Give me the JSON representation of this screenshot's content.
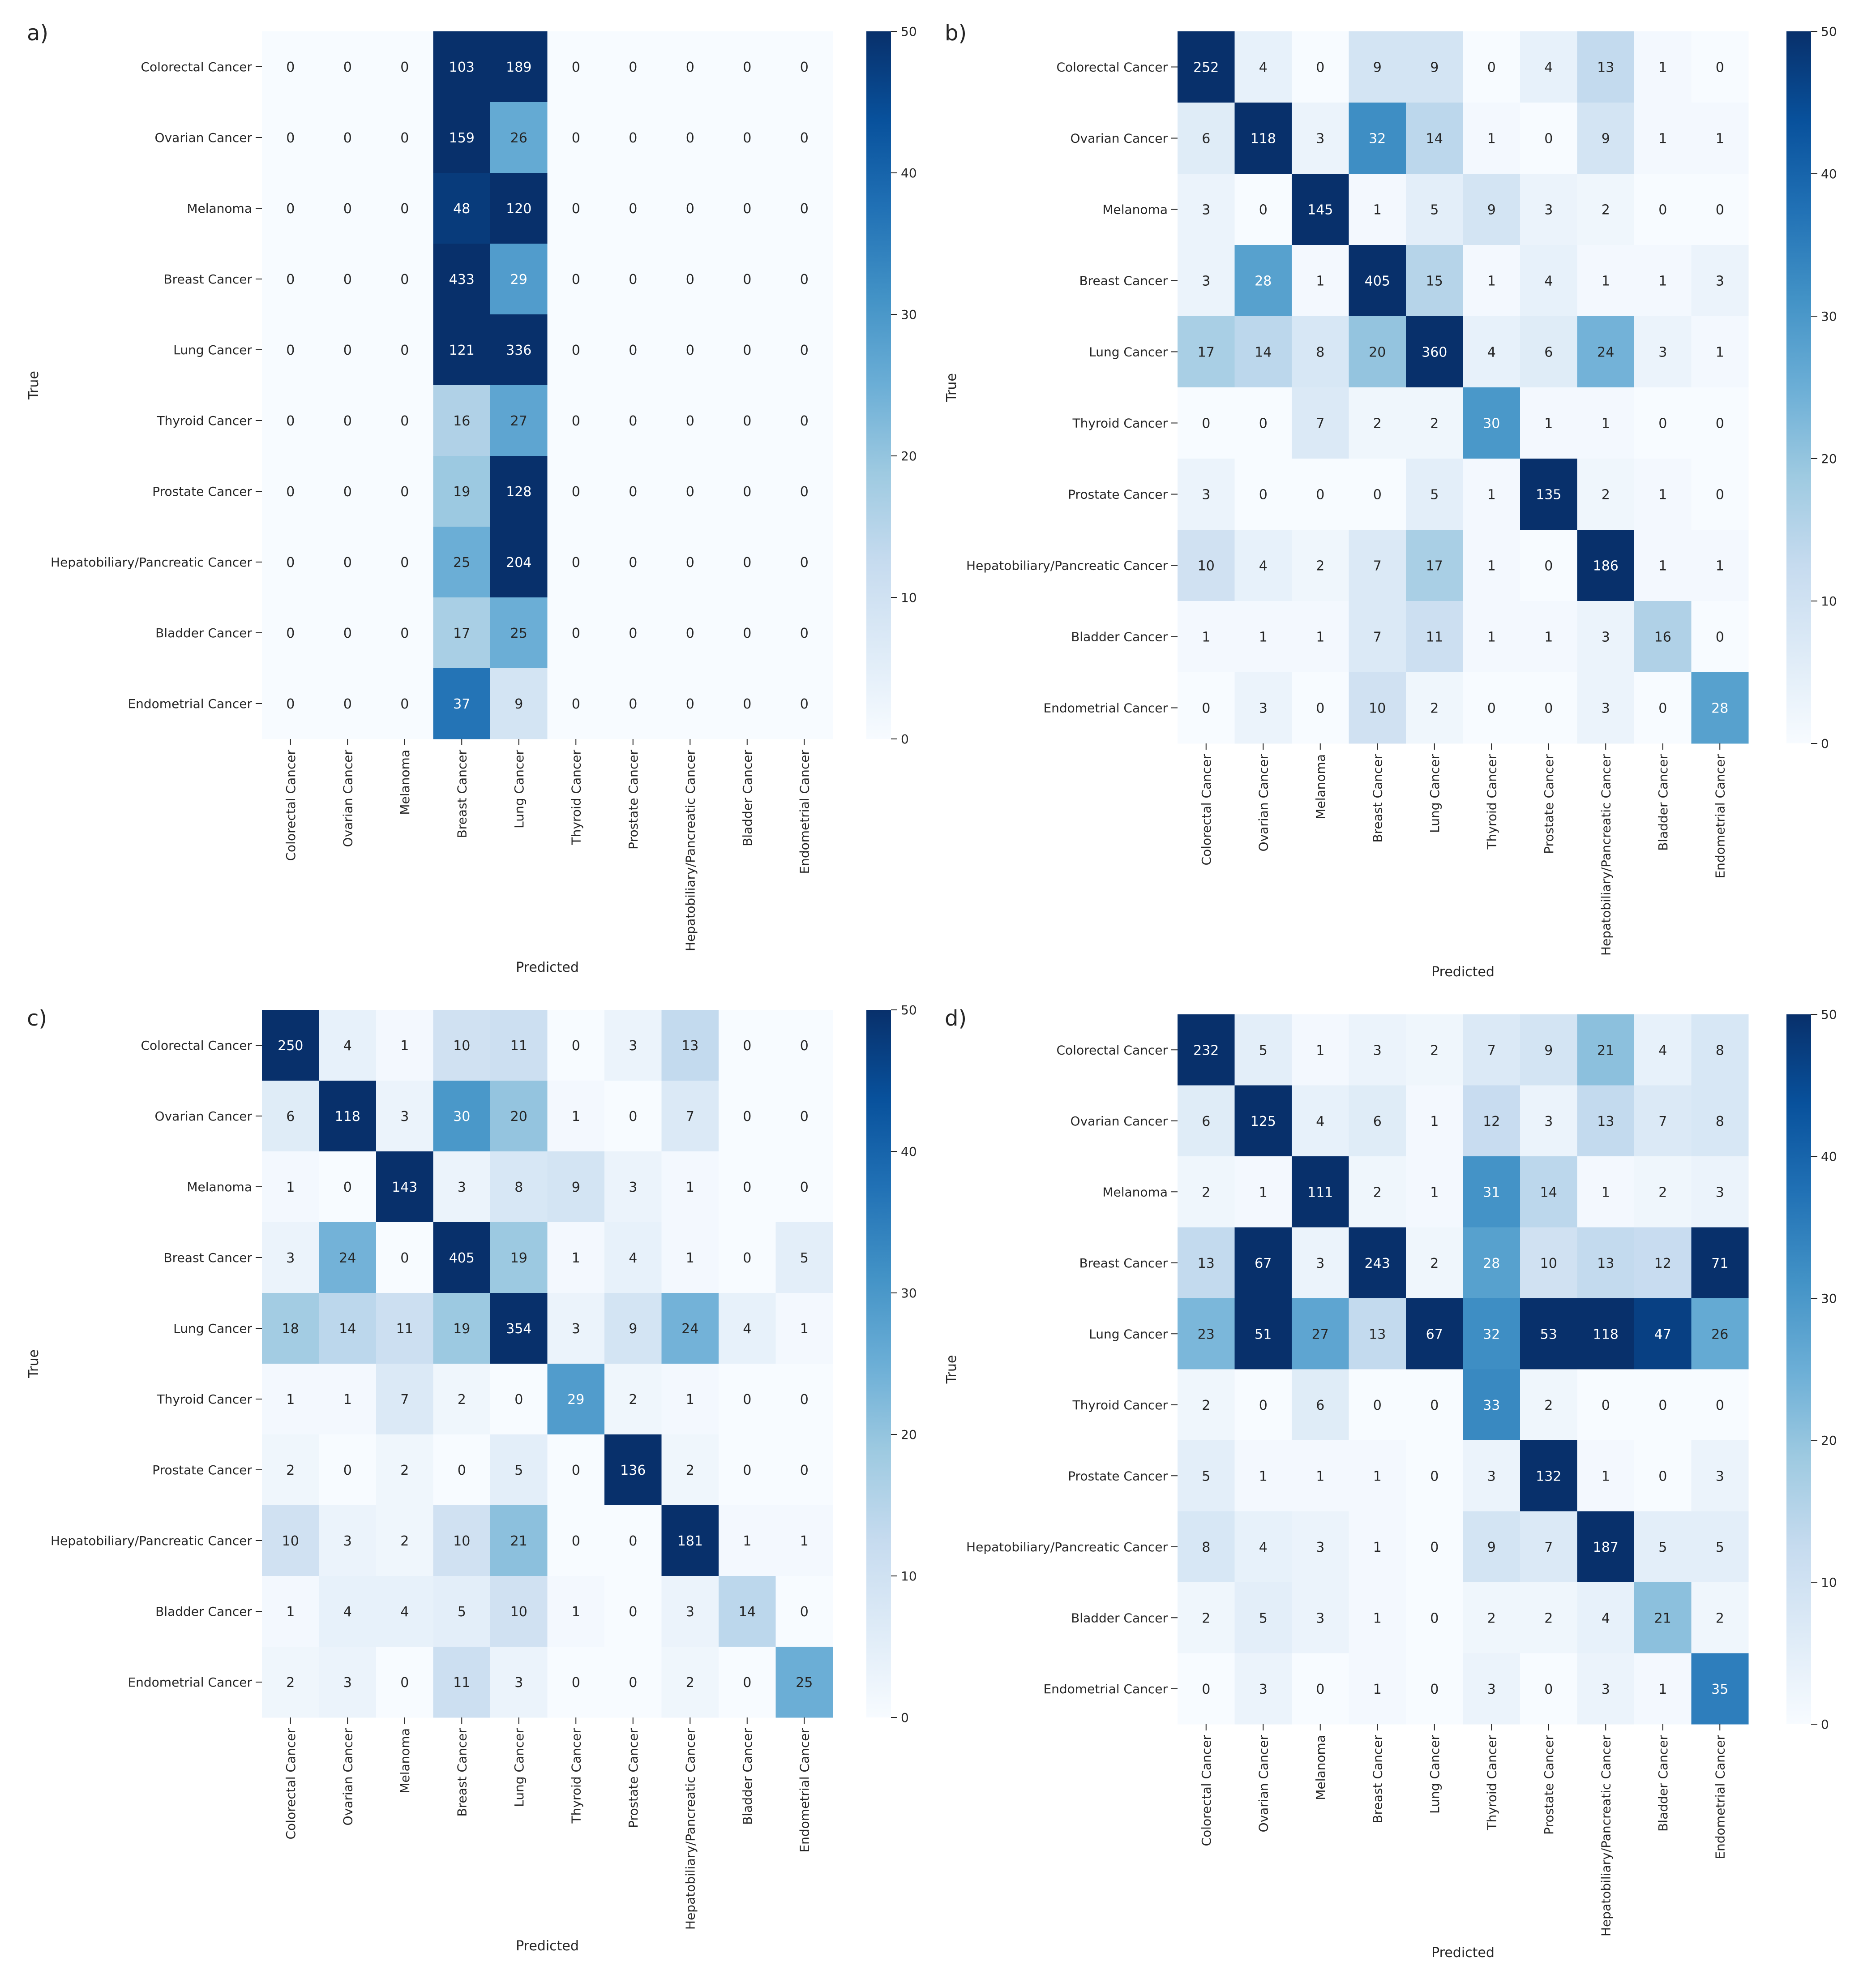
{
  "chart_data": [
    {
      "type": "heatmap",
      "panel_label": "a)",
      "xlabel": "Predicted",
      "ylabel": "True",
      "rows": [
        "Colorectal Cancer",
        "Ovarian Cancer",
        "Melanoma",
        "Breast Cancer",
        "Lung Cancer",
        "Thyroid Cancer",
        "Prostate Cancer",
        "Hepatobiliary/Pancreatic Cancer",
        "Bladder Cancer",
        "Endometrial Cancer"
      ],
      "cols": [
        "Colorectal Cancer",
        "Ovarian Cancer",
        "Melanoma",
        "Breast Cancer",
        "Lung Cancer",
        "Thyroid Cancer",
        "Prostate Cancer",
        "Hepatobiliary/Pancreatic Cancer",
        "Bladder Cancer",
        "Endometrial Cancer"
      ],
      "matrix": [
        [
          0,
          0,
          0,
          103,
          189,
          0,
          0,
          0,
          0,
          0
        ],
        [
          0,
          0,
          0,
          159,
          26,
          0,
          0,
          0,
          0,
          0
        ],
        [
          0,
          0,
          0,
          48,
          120,
          0,
          0,
          0,
          0,
          0
        ],
        [
          0,
          0,
          0,
          433,
          29,
          0,
          0,
          0,
          0,
          0
        ],
        [
          0,
          0,
          0,
          121,
          336,
          0,
          0,
          0,
          0,
          0
        ],
        [
          0,
          0,
          0,
          16,
          27,
          0,
          0,
          0,
          0,
          0
        ],
        [
          0,
          0,
          0,
          19,
          128,
          0,
          0,
          0,
          0,
          0
        ],
        [
          0,
          0,
          0,
          25,
          204,
          0,
          0,
          0,
          0,
          0
        ],
        [
          0,
          0,
          0,
          17,
          25,
          0,
          0,
          0,
          0,
          0
        ],
        [
          0,
          0,
          0,
          37,
          9,
          0,
          0,
          0,
          0,
          0
        ]
      ],
      "colorbar": {
        "min": 0,
        "max": 50,
        "ticks": [
          0,
          10,
          20,
          30,
          40,
          50
        ]
      }
    },
    {
      "type": "heatmap",
      "panel_label": "b)",
      "xlabel": "Predicted",
      "ylabel": "True",
      "rows": [
        "Colorectal Cancer",
        "Ovarian Cancer",
        "Melanoma",
        "Breast Cancer",
        "Lung Cancer",
        "Thyroid Cancer",
        "Prostate Cancer",
        "Hepatobiliary/Pancreatic Cancer",
        "Bladder Cancer",
        "Endometrial Cancer"
      ],
      "cols": [
        "Colorectal Cancer",
        "Ovarian Cancer",
        "Melanoma",
        "Breast Cancer",
        "Lung Cancer",
        "Thyroid Cancer",
        "Prostate Cancer",
        "Hepatobiliary/Pancreatic Cancer",
        "Bladder Cancer",
        "Endometrial Cancer"
      ],
      "matrix": [
        [
          252,
          4,
          0,
          9,
          9,
          0,
          4,
          13,
          1,
          0
        ],
        [
          6,
          118,
          3,
          32,
          14,
          1,
          0,
          9,
          1,
          1
        ],
        [
          3,
          0,
          145,
          1,
          5,
          9,
          3,
          2,
          0,
          0
        ],
        [
          3,
          28,
          1,
          405,
          15,
          1,
          4,
          1,
          1,
          3
        ],
        [
          17,
          14,
          8,
          20,
          360,
          4,
          6,
          24,
          3,
          1
        ],
        [
          0,
          0,
          7,
          2,
          2,
          30,
          1,
          1,
          0,
          0
        ],
        [
          3,
          0,
          0,
          0,
          5,
          1,
          135,
          2,
          1,
          0
        ],
        [
          10,
          4,
          2,
          7,
          17,
          1,
          0,
          186,
          1,
          1
        ],
        [
          1,
          1,
          1,
          7,
          11,
          1,
          1,
          3,
          16,
          0
        ],
        [
          0,
          3,
          0,
          10,
          2,
          0,
          0,
          3,
          0,
          28
        ]
      ],
      "colorbar": {
        "min": 0,
        "max": 50,
        "ticks": [
          0,
          10,
          20,
          30,
          40,
          50
        ]
      }
    },
    {
      "type": "heatmap",
      "panel_label": "c)",
      "xlabel": "Predicted",
      "ylabel": "True",
      "rows": [
        "Colorectal Cancer",
        "Ovarian Cancer",
        "Melanoma",
        "Breast Cancer",
        "Lung Cancer",
        "Thyroid Cancer",
        "Prostate Cancer",
        "Hepatobiliary/Pancreatic Cancer",
        "Bladder Cancer",
        "Endometrial Cancer"
      ],
      "cols": [
        "Colorectal Cancer",
        "Ovarian Cancer",
        "Melanoma",
        "Breast Cancer",
        "Lung Cancer",
        "Thyroid Cancer",
        "Prostate Cancer",
        "Hepatobiliary/Pancreatic Cancer",
        "Bladder Cancer",
        "Endometrial Cancer"
      ],
      "matrix": [
        [
          250,
          4,
          1,
          10,
          11,
          0,
          3,
          13,
          0,
          0
        ],
        [
          6,
          118,
          3,
          30,
          20,
          1,
          0,
          7,
          0,
          0
        ],
        [
          1,
          0,
          143,
          3,
          8,
          9,
          3,
          1,
          0,
          0
        ],
        [
          3,
          24,
          0,
          405,
          19,
          1,
          4,
          1,
          0,
          5
        ],
        [
          18,
          14,
          11,
          19,
          354,
          3,
          9,
          24,
          4,
          1
        ],
        [
          1,
          1,
          7,
          2,
          0,
          29,
          2,
          1,
          0,
          0
        ],
        [
          2,
          0,
          2,
          0,
          5,
          0,
          136,
          2,
          0,
          0
        ],
        [
          10,
          3,
          2,
          10,
          21,
          0,
          0,
          181,
          1,
          1
        ],
        [
          1,
          4,
          4,
          5,
          10,
          1,
          0,
          3,
          14,
          0
        ],
        [
          2,
          3,
          0,
          11,
          3,
          0,
          0,
          2,
          0,
          25
        ]
      ],
      "colorbar": {
        "min": 0,
        "max": 50,
        "ticks": [
          0,
          10,
          20,
          30,
          40,
          50
        ]
      }
    },
    {
      "type": "heatmap",
      "panel_label": "d)",
      "xlabel": "Predicted",
      "ylabel": "True",
      "rows": [
        "Colorectal Cancer",
        "Ovarian Cancer",
        "Melanoma",
        "Breast Cancer",
        "Lung Cancer",
        "Thyroid Cancer",
        "Prostate Cancer",
        "Hepatobiliary/Pancreatic Cancer",
        "Bladder Cancer",
        "Endometrial Cancer"
      ],
      "cols": [
        "Colorectal Cancer",
        "Ovarian Cancer",
        "Melanoma",
        "Breast Cancer",
        "Lung Cancer",
        "Thyroid Cancer",
        "Prostate Cancer",
        "Hepatobiliary/Pancreatic Cancer",
        "Bladder Cancer",
        "Endometrial Cancer"
      ],
      "matrix": [
        [
          232,
          5,
          1,
          3,
          2,
          7,
          9,
          21,
          4,
          8
        ],
        [
          6,
          125,
          4,
          6,
          1,
          12,
          3,
          13,
          7,
          8
        ],
        [
          2,
          1,
          111,
          2,
          1,
          31,
          14,
          1,
          2,
          3
        ],
        [
          13,
          67,
          3,
          243,
          2,
          28,
          10,
          13,
          12,
          71
        ],
        [
          23,
          51,
          27,
          13,
          67,
          32,
          53,
          118,
          47,
          26
        ],
        [
          2,
          0,
          6,
          0,
          0,
          33,
          2,
          0,
          0,
          0
        ],
        [
          5,
          1,
          1,
          1,
          0,
          3,
          132,
          1,
          0,
          3
        ],
        [
          8,
          4,
          3,
          1,
          0,
          9,
          7,
          187,
          5,
          5
        ],
        [
          2,
          5,
          3,
          1,
          0,
          2,
          2,
          4,
          21,
          2
        ],
        [
          0,
          3,
          0,
          1,
          0,
          3,
          0,
          3,
          1,
          35
        ]
      ],
      "colorbar": {
        "min": 0,
        "max": 50,
        "ticks": [
          0,
          10,
          20,
          30,
          40,
          50
        ]
      }
    }
  ],
  "colors": {
    "scale": [
      "#f7fbff",
      "#deebf7",
      "#c6dbef",
      "#9ecae1",
      "#6baed6",
      "#4292c6",
      "#2171b5",
      "#08519c",
      "#08306b"
    ],
    "text_dark": "#262626",
    "text_light": "#ffffff",
    "axis": "#262626"
  }
}
